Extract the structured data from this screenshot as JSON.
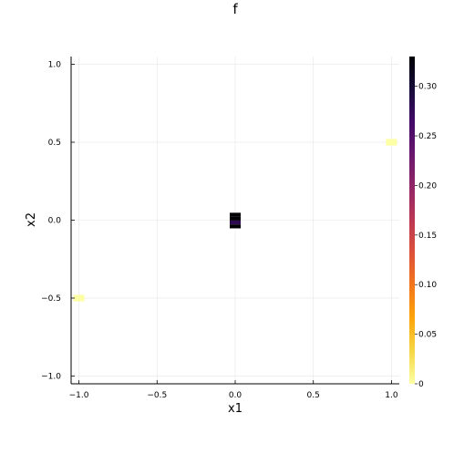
{
  "chart_data": {
    "type": "heatmap",
    "title": "f",
    "xlabel": "x1",
    "ylabel": "x2",
    "xlim": [
      -1.05,
      1.05
    ],
    "ylim": [
      -1.05,
      1.05
    ],
    "xticks": [
      -1.0,
      -0.5,
      0.0,
      0.5,
      1.0
    ],
    "xtick_labels": [
      "−1.0",
      "−0.5",
      "0.0",
      "0.5",
      "1.0"
    ],
    "yticks": [
      -1.0,
      -0.5,
      0.0,
      0.5,
      1.0
    ],
    "ytick_labels": [
      "−1.0",
      "−0.5",
      "0.0",
      "0.5",
      "1.0"
    ],
    "grid": true,
    "cells": [
      {
        "x": -1.0,
        "y": -0.5,
        "value": 0.0
      },
      {
        "x": 0.0,
        "y": 0.035,
        "value": 0.33
      },
      {
        "x": 0.0,
        "y": 0.01,
        "value": 0.33
      },
      {
        "x": 0.0,
        "y": -0.015,
        "value": 0.28
      },
      {
        "x": 0.0,
        "y": -0.04,
        "value": 0.33
      },
      {
        "x": 1.0,
        "y": 0.5,
        "value": 0.0
      }
    ],
    "cell_width": 0.07,
    "cell_height": 0.025,
    "corner_cell_size": 0.07,
    "colorbar": {
      "range": [
        0,
        0.33
      ],
      "ticks": [
        0,
        0.05,
        0.1,
        0.15,
        0.2,
        0.25,
        0.3
      ],
      "tick_labels": [
        "0",
        "0.05",
        "0.10",
        "0.15",
        "0.20",
        "0.25",
        "0.30"
      ],
      "colormap": "inferno-reversed",
      "stops": [
        "#fcffa4",
        "#f6d746",
        "#fca50a",
        "#f3761b",
        "#dd513a",
        "#bc3754",
        "#932667",
        "#6a176e",
        "#420a68",
        "#160b39",
        "#000004"
      ]
    }
  }
}
